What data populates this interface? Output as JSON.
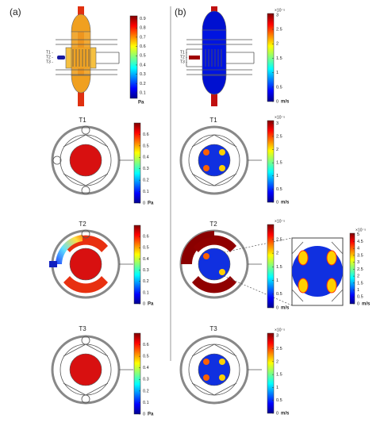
{
  "panels": [
    {
      "label": "(a)",
      "top": {
        "markers": [
          "T1 -",
          "T2 -",
          "T3 -"
        ],
        "colorbar": {
          "ylim": [
            0.04,
            0.93
          ],
          "ticks": [
            0.1,
            0.2,
            0.3,
            0.4,
            0.5,
            0.6,
            0.7,
            0.8,
            0.9
          ],
          "unit": "Pa"
        }
      },
      "sections": [
        {
          "title": "T1",
          "colorbar": {
            "ylim": [
              0,
              0.7
            ],
            "ticks": [
              0,
              0.1,
              0.2,
              0.3,
              0.4,
              0.5,
              0.6
            ],
            "unit": "Pa"
          }
        },
        {
          "title": "T2",
          "colorbar": {
            "ylim": [
              0,
              0.7
            ],
            "ticks": [
              0,
              0.1,
              0.2,
              0.3,
              0.4,
              0.5,
              0.6
            ],
            "unit": "Pa"
          }
        },
        {
          "title": "T3",
          "colorbar": {
            "ylim": [
              0,
              0.7
            ],
            "ticks": [
              0,
              0.1,
              0.2,
              0.3,
              0.4,
              0.5,
              0.6
            ],
            "unit": "Pa"
          }
        }
      ]
    },
    {
      "label": "(b)",
      "top": {
        "markers": [
          "T1 -",
          "T2 -",
          "T3 -"
        ],
        "colorbar": {
          "exponent": "×10⁻⁵",
          "ylim": [
            0,
            3.05
          ],
          "ticks": [
            0,
            0.5,
            1,
            1.5,
            2,
            2.5,
            3
          ],
          "unit": "m/s"
        }
      },
      "sections": [
        {
          "title": "T1",
          "colorbar": {
            "exponent": "×10⁻⁵",
            "ylim": [
              0,
              3.1
            ],
            "ticks": [
              0,
              0.5,
              1,
              1.5,
              2,
              2.5,
              3
            ],
            "unit": "m/s"
          }
        },
        {
          "title": "T2",
          "colorbar": {
            "exponent": "×10⁻⁵",
            "ylim": [
              0,
              3.05
            ],
            "ticks": [
              0,
              0.5,
              1,
              1.5,
              2,
              2.5
            ],
            "unit": "m/s"
          },
          "inset_colorbar": {
            "exponent": "×10⁻⁵",
            "ylim": [
              0,
              5.1
            ],
            "ticks": [
              0,
              0.5,
              1,
              1.5,
              2,
              2.5,
              3,
              3.5,
              4,
              4.5,
              5
            ],
            "unit": "m/s"
          }
        },
        {
          "title": "T3",
          "colorbar": {
            "exponent": "×10⁻⁵",
            "ylim": [
              0,
              3.1
            ],
            "ticks": [
              0,
              0.5,
              1,
              1.5,
              2,
              2.5,
              3
            ],
            "unit": "m/s"
          }
        }
      ]
    }
  ]
}
